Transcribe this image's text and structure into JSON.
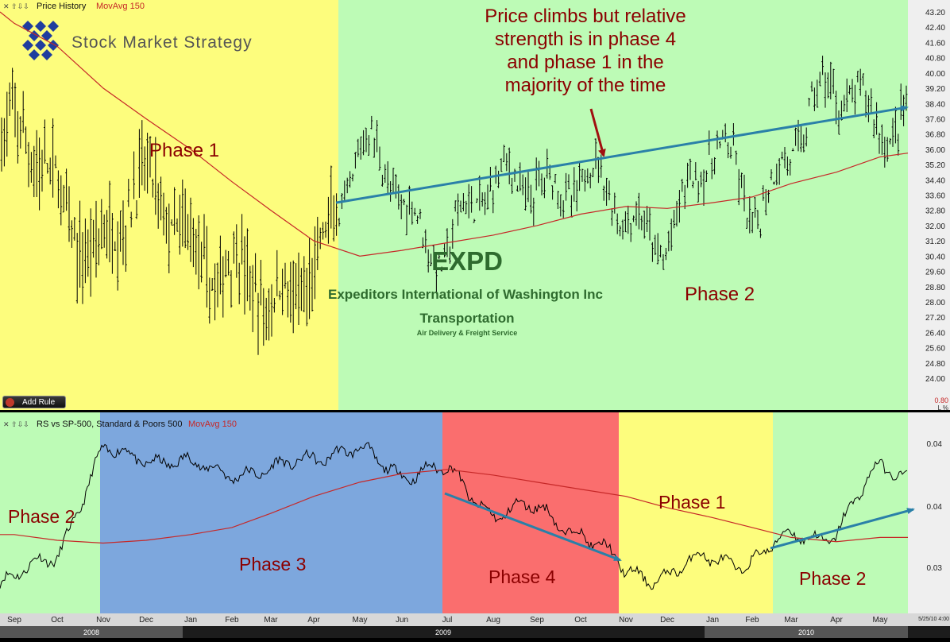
{
  "chart_data": [
    {
      "type": "line",
      "panel_label": "Price History",
      "indicator_label": "MovAvg 150",
      "y_ticks": [
        "43.20",
        "42.40",
        "41.60",
        "40.80",
        "40.00",
        "39.20",
        "38.40",
        "37.60",
        "36.80",
        "36.00",
        "35.20",
        "34.40",
        "33.60",
        "32.80",
        "32.00",
        "31.20",
        "30.40",
        "29.60",
        "28.80",
        "28.00",
        "27.20",
        "26.40",
        "25.60",
        "24.80",
        "24.00"
      ],
      "ylim": [
        24.0,
        43.2
      ],
      "volume_tick": "0.80",
      "corner_label": "L %",
      "series": [
        {
          "name": "Price History",
          "x": [
            "2008-09",
            "2008-10",
            "2008-11",
            "2008-12",
            "2009-01",
            "2009-02",
            "2009-03",
            "2009-04",
            "2009-05",
            "2009-06",
            "2009-07",
            "2009-08",
            "2009-09",
            "2009-10",
            "2009-11",
            "2009-12",
            "2010-01",
            "2010-02",
            "2010-03",
            "2010-04",
            "2010-05"
          ],
          "values": [
            36.0,
            33.5,
            31.5,
            33.0,
            32.0,
            29.5,
            26.5,
            31.0,
            35.0,
            33.5,
            31.5,
            33.0,
            35.5,
            34.0,
            32.0,
            32.5,
            35.0,
            33.0,
            37.0,
            38.0,
            38.5
          ]
        },
        {
          "name": "MovAvg 150",
          "x": [
            "2008-09",
            "2008-10",
            "2008-11",
            "2008-12",
            "2009-01",
            "2009-02",
            "2009-03",
            "2009-04",
            "2009-05",
            "2009-06",
            "2009-07",
            "2009-08",
            "2009-09",
            "2009-10",
            "2009-11",
            "2009-12",
            "2010-01",
            "2010-02",
            "2010-03",
            "2010-04",
            "2010-05"
          ],
          "values": [
            42.6,
            41.4,
            39.2,
            37.6,
            36.0,
            34.3,
            32.8,
            31.2,
            30.4,
            30.7,
            31.1,
            31.5,
            32.0,
            32.6,
            33.0,
            32.9,
            33.2,
            33.5,
            34.2,
            34.8,
            35.6
          ]
        }
      ],
      "annotations": {
        "logo_text": "Stock Market Strategy",
        "callout_lines": [
          "Price climbs but relative",
          "strength is in phase 4",
          "and phase 1 in the",
          "majority of the time"
        ],
        "ticker": "EXPD",
        "company": "Expeditors International of Washington Inc",
        "sector": "Transportation",
        "industry": "Air Delivery & Freight Service",
        "phases": [
          "Phase 1",
          "Phase 2"
        ]
      },
      "trendline": {
        "from": [
          "2009-04",
          33.2
        ],
        "to": [
          "2010-05",
          38.2
        ]
      }
    },
    {
      "type": "line",
      "panel_label": "RS vs SP-500, Standard & Poors 500",
      "indicator_label": "MovAvg 150",
      "y_ticks": [
        "0.04",
        "0.04",
        "0.03"
      ],
      "annotations": {
        "phases": [
          "Phase 2",
          "Phase 3",
          "Phase 4",
          "Phase 1",
          "Phase 2"
        ]
      },
      "series": [
        {
          "name": "RS vs SP-500",
          "x": [
            "2008-09",
            "2008-10",
            "2008-11",
            "2008-12",
            "2009-01",
            "2009-02",
            "2009-03",
            "2009-04",
            "2009-05",
            "2009-06",
            "2009-07",
            "2009-08",
            "2009-09",
            "2009-10",
            "2009-11",
            "2009-12",
            "2010-01",
            "2010-02",
            "2010-03",
            "2010-04",
            "2010-05"
          ],
          "values": [
            0.0305,
            0.033,
            0.0395,
            0.0398,
            0.0385,
            0.0388,
            0.038,
            0.04,
            0.0395,
            0.0387,
            0.0382,
            0.0358,
            0.0355,
            0.0345,
            0.031,
            0.0315,
            0.032,
            0.0325,
            0.0335,
            0.0345,
            0.0385
          ]
        },
        {
          "name": "MovAvg 150",
          "x": [
            "2008-09",
            "2008-10",
            "2008-11",
            "2008-12",
            "2009-01",
            "2009-02",
            "2009-03",
            "2009-04",
            "2009-05",
            "2009-06",
            "2009-07",
            "2009-08",
            "2009-09",
            "2009-10",
            "2009-11",
            "2009-12",
            "2010-01",
            "2010-02",
            "2010-03",
            "2010-04",
            "2010-05"
          ],
          "values": [
            0.034,
            0.0336,
            0.0334,
            0.0336,
            0.034,
            0.0345,
            0.0355,
            0.0367,
            0.0377,
            0.0383,
            0.0386,
            0.0382,
            0.0377,
            0.0372,
            0.0367,
            0.0359,
            0.0352,
            0.0345,
            0.0338,
            0.0335,
            0.0338
          ]
        }
      ]
    }
  ],
  "x_axis": {
    "months": [
      "Sep",
      "Oct",
      "Nov",
      "Dec",
      "Jan",
      "Feb",
      "Mar",
      "Apr",
      "May",
      "Jun",
      "Jul",
      "Aug",
      "Sep",
      "Oct",
      "Nov",
      "Dec",
      "Jan",
      "Feb",
      "Mar",
      "Apr",
      "May"
    ],
    "years": [
      "2008",
      "2009",
      "2010"
    ],
    "timestamp": "5/25/10 4:00"
  },
  "toolbar": {
    "add_rule_label": "Add Rule"
  },
  "colors": {
    "phase1": "#fdfd7d",
    "phase2": "#bdfbb6",
    "phase3": "#7da7dd",
    "phase4": "#fa6e6e",
    "price": "#000000",
    "mavg": "#c62828",
    "trend_arrow": "#2a80a8",
    "annotation_text": "#8b0000",
    "title_green": "#2e6b2e"
  }
}
